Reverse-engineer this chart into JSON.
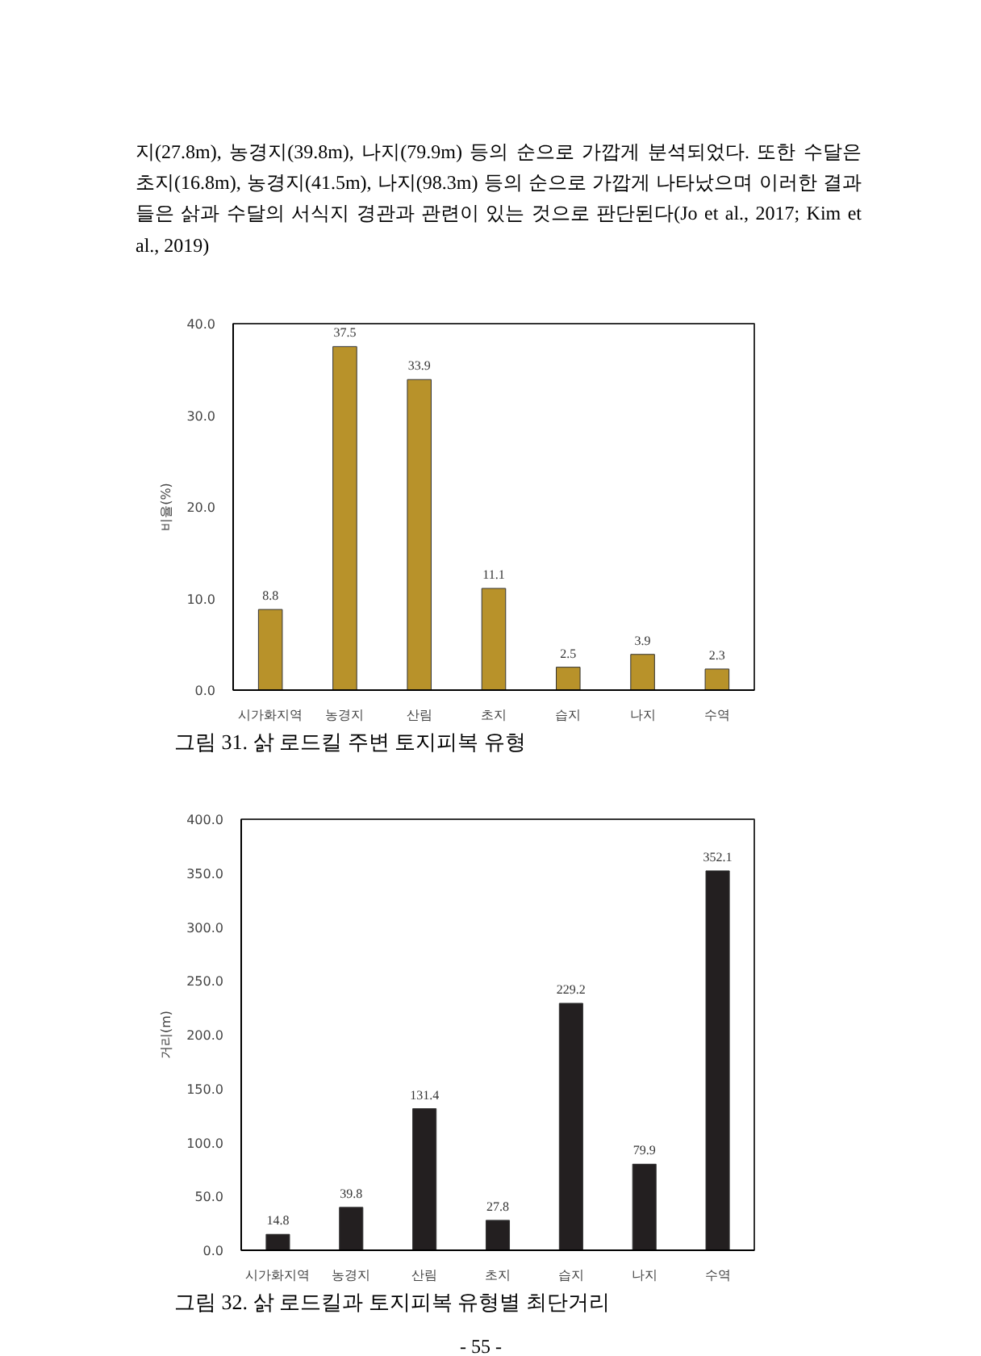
{
  "chart_data": [
    {
      "type": "bar",
      "title": "그림 31. 삵 로드킬 주변 토지피복 유형",
      "ylabel": "비율(%)",
      "annotations": [
        "지(27.8m), 농경지(39.8m), 나지(79.9m) 등의 순으로 가깝게 분석되었다. 또한 수달은 초지(16.8m), 농경지(41.5m), 나지(98.3m) 등의 순으로 가깝게 나타났으며 이러한 결과들은 삵과 수달의 서식지 경관과 관련이 있는 것으로 판단된다(Jo et al., 2017; Kim et al., 2019)"
      ],
      "categories": [
        "시가화지역",
        "농경지",
        "산림",
        "초지",
        "습지",
        "나지",
        "수역"
      ],
      "values": [
        8.8,
        37.5,
        33.9,
        11.1,
        2.5,
        3.9,
        2.3
      ],
      "color": "#b8922a",
      "ylim": [
        0,
        40
      ],
      "yticks": [
        {
          "value": 0,
          "label": "0.0"
        },
        {
          "value": 10,
          "label": "10.0"
        },
        {
          "value": 20,
          "label": "20.0"
        },
        {
          "value": 30,
          "label": "30.0"
        },
        {
          "value": 40,
          "label": "40.0"
        }
      ],
      "grid": false,
      "data_labels": true
    },
    {
      "type": "bar",
      "title": "그림 32. 삵 로드킬과 토지피복 유형별 최단거리",
      "ylabel": "거리(m)",
      "annotations": [
        "- 55 -"
      ],
      "categories": [
        "시가화지역",
        "농경지",
        "산림",
        "초지",
        "습지",
        "나지",
        "수역"
      ],
      "values": [
        14.8,
        39.8,
        131.4,
        27.8,
        229.2,
        79.9,
        352.1
      ],
      "color": "#231f20",
      "ylim": [
        0,
        400
      ],
      "yticks": [
        {
          "value": 0,
          "label": "0.0"
        },
        {
          "value": 50,
          "label": "50.0"
        },
        {
          "value": 100,
          "label": "100.0"
        },
        {
          "value": 150,
          "label": "150.0"
        },
        {
          "value": 200,
          "label": "200.0"
        },
        {
          "value": 250,
          "label": "250.0"
        },
        {
          "value": 300,
          "label": "300.0"
        },
        {
          "value": 350,
          "label": "350.0"
        },
        {
          "value": 400,
          "label": "400.0"
        }
      ],
      "grid": false,
      "data_labels": true
    }
  ]
}
